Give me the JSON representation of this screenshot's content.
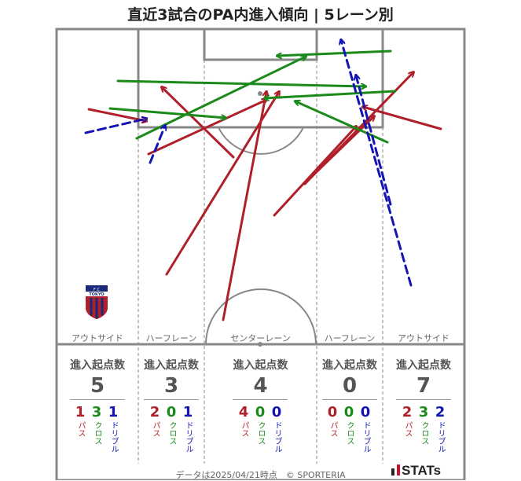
{
  "title": "直近3試合のPA内進入傾向 | 5レーン別",
  "lanes": [
    {
      "label": "アウトサイド",
      "total": "5",
      "pass": "1",
      "cross": "3",
      "dribble": "1"
    },
    {
      "label": "ハーフレーン",
      "total": "3",
      "pass": "2",
      "cross": "0",
      "dribble": "1"
    },
    {
      "label": "センターレーン",
      "total": "4",
      "pass": "4",
      "cross": "0",
      "dribble": "0"
    },
    {
      "label": "ハーフレーン",
      "total": "0",
      "pass": "0",
      "cross": "0",
      "dribble": "0"
    },
    {
      "label": "アウトサイド",
      "total": "7",
      "pass": "2",
      "cross": "3",
      "dribble": "2"
    }
  ],
  "count_header": "進入起点数",
  "type_labels": {
    "pass": "パス",
    "cross": "クロス",
    "dribble": "ドリブル"
  },
  "crest_text": "TOKYO",
  "crest_letters": "F C",
  "footer": "データは2025/04/21時点　© SPORTERIA",
  "brand": "STATs",
  "colors": {
    "pass": "#b0202a",
    "cross": "#1a8a1a",
    "dribble": "#1414b4",
    "pitch_line": "#888888"
  },
  "chart_data": {
    "type": "pitch-arrows",
    "title": "直近3試合のPA内進入傾向 | 5レーン別",
    "legend": [
      "パス",
      "クロス",
      "ドリブル"
    ],
    "lane_counts": [
      {
        "lane": "アウトサイド",
        "total": 5,
        "pass": 1,
        "cross": 3,
        "dribble": 1
      },
      {
        "lane": "ハーフレーン",
        "total": 3,
        "pass": 2,
        "cross": 0,
        "dribble": 1
      },
      {
        "lane": "センターレーン",
        "total": 4,
        "pass": 4,
        "cross": 0,
        "dribble": 0
      },
      {
        "lane": "ハーフレーン",
        "total": 0,
        "pass": 0,
        "cross": 0,
        "dribble": 0
      },
      {
        "lane": "アウトサイド",
        "total": 7,
        "pass": 2,
        "cross": 3,
        "dribble": 2
      }
    ],
    "arrows": [
      {
        "type": "pass",
        "from": [
          113,
          139
        ],
        "to": [
          186,
          154
        ]
      },
      {
        "type": "pass",
        "from": [
          297,
          200
        ],
        "to": [
          206,
          111
        ]
      },
      {
        "type": "pass",
        "from": [
          189,
          196
        ],
        "to": [
          339,
          127
        ]
      },
      {
        "type": "pass",
        "from": [
          284,
          407
        ],
        "to": [
          339,
          117
        ]
      },
      {
        "type": "pass",
        "from": [
          212,
          349
        ],
        "to": [
          355,
          117
        ]
      },
      {
        "type": "pass",
        "from": [
          389,
          232
        ],
        "to": [
          476,
          148
        ]
      },
      {
        "type": "pass",
        "from": [
          349,
          274
        ],
        "to": [
          453,
          161
        ]
      },
      {
        "type": "pass",
        "from": [
          561,
          164
        ],
        "to": [
          462,
          136
        ]
      },
      {
        "type": "pass",
        "from": [
          388,
          234
        ],
        "to": [
          526,
          92
        ]
      },
      {
        "type": "cross",
        "from": [
          140,
          138
        ],
        "to": [
          287,
          150
        ]
      },
      {
        "type": "cross",
        "from": [
          150,
          103
        ],
        "to": [
          465,
          110
        ]
      },
      {
        "type": "cross",
        "from": [
          174,
          176
        ],
        "to": [
          389,
          72
        ]
      },
      {
        "type": "cross",
        "from": [
          497,
          65
        ],
        "to": [
          353,
          71
        ]
      },
      {
        "type": "cross",
        "from": [
          503,
          116
        ],
        "to": [
          337,
          125
        ]
      },
      {
        "type": "cross",
        "from": [
          493,
          181
        ],
        "to": [
          376,
          129
        ]
      },
      {
        "type": "dribble",
        "from": [
          109,
          169
        ],
        "to": [
          186,
          151
        ]
      },
      {
        "type": "dribble",
        "from": [
          191,
          207
        ],
        "to": [
          210,
          160
        ]
      },
      {
        "type": "dribble",
        "from": [
          523,
          363
        ],
        "to": [
          434,
          51
        ]
      },
      {
        "type": "dribble",
        "from": [
          497,
          260
        ],
        "to": [
          453,
          96
        ]
      }
    ]
  }
}
